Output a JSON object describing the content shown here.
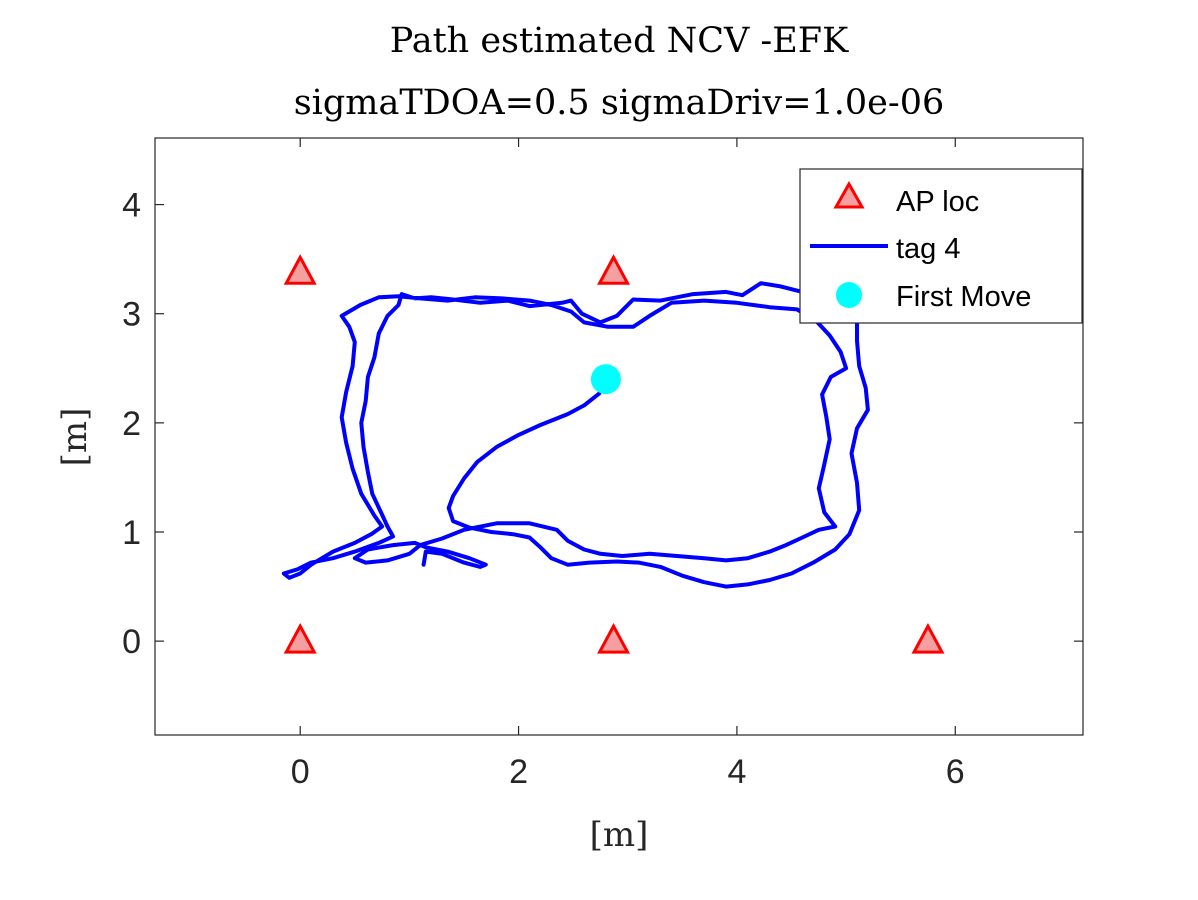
{
  "chart_data": {
    "type": "scatter",
    "title_lines": [
      "Path estimated NCV -EFK",
      "sigmaTDOA=0.5 sigmaDriv=1.0e-06"
    ],
    "xlabel": "[m]",
    "ylabel": "[m]",
    "xlim": [
      -1.33,
      7.17
    ],
    "ylim": [
      -0.86,
      4.61
    ],
    "xticks": [
      0,
      2,
      4,
      6
    ],
    "yticks": [
      0,
      1,
      2,
      3,
      4
    ],
    "grid": false,
    "legend_position": "top-right",
    "series": [
      {
        "name": "AP loc",
        "kind": "marker-triangle",
        "color": "#ff0000",
        "fill": "#f4a0a0",
        "points": [
          [
            0,
            3.38
          ],
          [
            2.87,
            3.38
          ],
          [
            0,
            0
          ],
          [
            2.87,
            0
          ],
          [
            5.75,
            0
          ]
        ]
      },
      {
        "name": "tag 4",
        "kind": "line",
        "color": "#0000ff",
        "points": [
          [
            2.74,
            2.27
          ],
          [
            2.6,
            2.16
          ],
          [
            2.45,
            2.08
          ],
          [
            2.2,
            1.98
          ],
          [
            2.0,
            1.89
          ],
          [
            1.8,
            1.78
          ],
          [
            1.62,
            1.64
          ],
          [
            1.5,
            1.49
          ],
          [
            1.4,
            1.33
          ],
          [
            1.36,
            1.22
          ],
          [
            1.4,
            1.1
          ],
          [
            1.55,
            1.04
          ],
          [
            1.75,
            1.0
          ],
          [
            1.95,
            0.98
          ],
          [
            2.1,
            0.95
          ],
          [
            2.2,
            0.86
          ],
          [
            2.3,
            0.76
          ],
          [
            2.45,
            0.7
          ],
          [
            2.65,
            0.72
          ],
          [
            2.9,
            0.73
          ],
          [
            3.1,
            0.72
          ],
          [
            3.3,
            0.68
          ],
          [
            3.5,
            0.6
          ],
          [
            3.7,
            0.54
          ],
          [
            3.9,
            0.5
          ],
          [
            4.1,
            0.52
          ],
          [
            4.3,
            0.56
          ],
          [
            4.5,
            0.62
          ],
          [
            4.7,
            0.72
          ],
          [
            4.9,
            0.84
          ],
          [
            5.03,
            0.98
          ],
          [
            5.12,
            1.2
          ],
          [
            5.1,
            1.45
          ],
          [
            5.05,
            1.72
          ],
          [
            5.1,
            1.95
          ],
          [
            5.2,
            2.12
          ],
          [
            5.18,
            2.32
          ],
          [
            5.12,
            2.52
          ],
          [
            5.1,
            2.75
          ],
          [
            5.1,
            2.98
          ],
          [
            5.05,
            3.1
          ],
          [
            4.95,
            3.25
          ],
          [
            4.8,
            3.22
          ],
          [
            4.6,
            3.2
          ],
          [
            4.4,
            3.25
          ],
          [
            4.22,
            3.28
          ],
          [
            4.05,
            3.17
          ],
          [
            3.9,
            3.2
          ],
          [
            3.6,
            3.18
          ],
          [
            3.3,
            3.12
          ],
          [
            3.05,
            3.13
          ],
          [
            2.9,
            2.98
          ],
          [
            2.75,
            2.92
          ],
          [
            2.58,
            3.0
          ],
          [
            2.48,
            3.12
          ],
          [
            2.4,
            3.1
          ],
          [
            2.3,
            3.09
          ],
          [
            2.1,
            3.07
          ],
          [
            1.9,
            3.12
          ],
          [
            1.65,
            3.1
          ],
          [
            1.4,
            3.13
          ],
          [
            1.2,
            3.15
          ],
          [
            1.05,
            3.14
          ],
          [
            0.93,
            3.18
          ],
          [
            0.9,
            3.08
          ],
          [
            0.8,
            2.98
          ],
          [
            0.72,
            2.82
          ],
          [
            0.68,
            2.6
          ],
          [
            0.62,
            2.42
          ],
          [
            0.6,
            2.2
          ],
          [
            0.56,
            2.0
          ],
          [
            0.58,
            1.78
          ],
          [
            0.62,
            1.55
          ],
          [
            0.66,
            1.35
          ],
          [
            0.74,
            1.18
          ],
          [
            0.8,
            1.05
          ],
          [
            0.85,
            0.96
          ],
          [
            0.72,
            0.9
          ],
          [
            0.5,
            0.82
          ],
          [
            0.3,
            0.76
          ],
          [
            0.1,
            0.72
          ],
          [
            -0.02,
            0.66
          ],
          [
            -0.15,
            0.62
          ],
          [
            -0.1,
            0.58
          ],
          [
            0.0,
            0.62
          ],
          [
            0.1,
            0.7
          ],
          [
            0.3,
            0.82
          ],
          [
            0.5,
            0.9
          ],
          [
            0.65,
            0.98
          ],
          [
            0.75,
            1.05
          ],
          [
            0.68,
            1.15
          ],
          [
            0.56,
            1.35
          ],
          [
            0.48,
            1.58
          ],
          [
            0.42,
            1.82
          ],
          [
            0.38,
            2.05
          ],
          [
            0.42,
            2.28
          ],
          [
            0.48,
            2.52
          ],
          [
            0.5,
            2.74
          ],
          [
            0.45,
            2.88
          ],
          [
            0.38,
            2.98
          ],
          [
            0.55,
            3.08
          ],
          [
            0.72,
            3.15
          ],
          [
            0.9,
            3.16
          ],
          [
            1.1,
            3.14
          ],
          [
            1.35,
            3.12
          ],
          [
            1.6,
            3.15
          ],
          [
            1.85,
            3.14
          ],
          [
            2.1,
            3.12
          ],
          [
            2.3,
            3.08
          ],
          [
            2.48,
            3.02
          ],
          [
            2.6,
            2.92
          ],
          [
            2.82,
            2.88
          ],
          [
            3.05,
            2.88
          ],
          [
            3.2,
            2.98
          ],
          [
            3.4,
            3.1
          ],
          [
            3.7,
            3.12
          ],
          [
            4.0,
            3.1
          ],
          [
            4.3,
            3.06
          ],
          [
            4.55,
            3.04
          ],
          [
            4.72,
            2.94
          ],
          [
            4.85,
            2.8
          ],
          [
            4.95,
            2.65
          ],
          [
            5.0,
            2.5
          ],
          [
            4.86,
            2.42
          ],
          [
            4.78,
            2.26
          ],
          [
            4.82,
            2.05
          ],
          [
            4.85,
            1.85
          ],
          [
            4.8,
            1.62
          ],
          [
            4.75,
            1.4
          ],
          [
            4.8,
            1.18
          ],
          [
            4.9,
            1.05
          ],
          [
            4.75,
            1.02
          ],
          [
            4.6,
            0.95
          ],
          [
            4.45,
            0.88
          ],
          [
            4.3,
            0.82
          ],
          [
            4.1,
            0.76
          ],
          [
            3.9,
            0.74
          ],
          [
            3.7,
            0.76
          ],
          [
            3.45,
            0.78
          ],
          [
            3.2,
            0.8
          ],
          [
            2.95,
            0.78
          ],
          [
            2.75,
            0.8
          ],
          [
            2.6,
            0.84
          ],
          [
            2.45,
            0.92
          ],
          [
            2.35,
            1.02
          ],
          [
            2.1,
            1.08
          ],
          [
            1.8,
            1.08
          ],
          [
            1.5,
            1.02
          ],
          [
            1.3,
            0.94
          ],
          [
            1.1,
            0.88
          ],
          [
            1.0,
            0.8
          ],
          [
            0.8,
            0.74
          ],
          [
            0.6,
            0.72
          ],
          [
            0.5,
            0.76
          ],
          [
            0.62,
            0.84
          ],
          [
            0.85,
            0.88
          ],
          [
            1.05,
            0.9
          ],
          [
            1.15,
            0.86
          ],
          [
            1.35,
            0.82
          ],
          [
            1.55,
            0.76
          ],
          [
            1.7,
            0.7
          ],
          [
            1.65,
            0.68
          ],
          [
            1.5,
            0.72
          ],
          [
            1.3,
            0.8
          ],
          [
            1.15,
            0.82
          ],
          [
            1.13,
            0.7
          ]
        ]
      },
      {
        "name": "First Move",
        "kind": "marker-circle",
        "color": "#00ffff",
        "points": [
          [
            2.8,
            2.4
          ]
        ]
      }
    ]
  },
  "colors": {
    "axis": "#262626",
    "ap_edge": "#ff0000",
    "ap_fill": "#f4a0a0",
    "path": "#0000ff",
    "first_move": "#00ffff"
  }
}
